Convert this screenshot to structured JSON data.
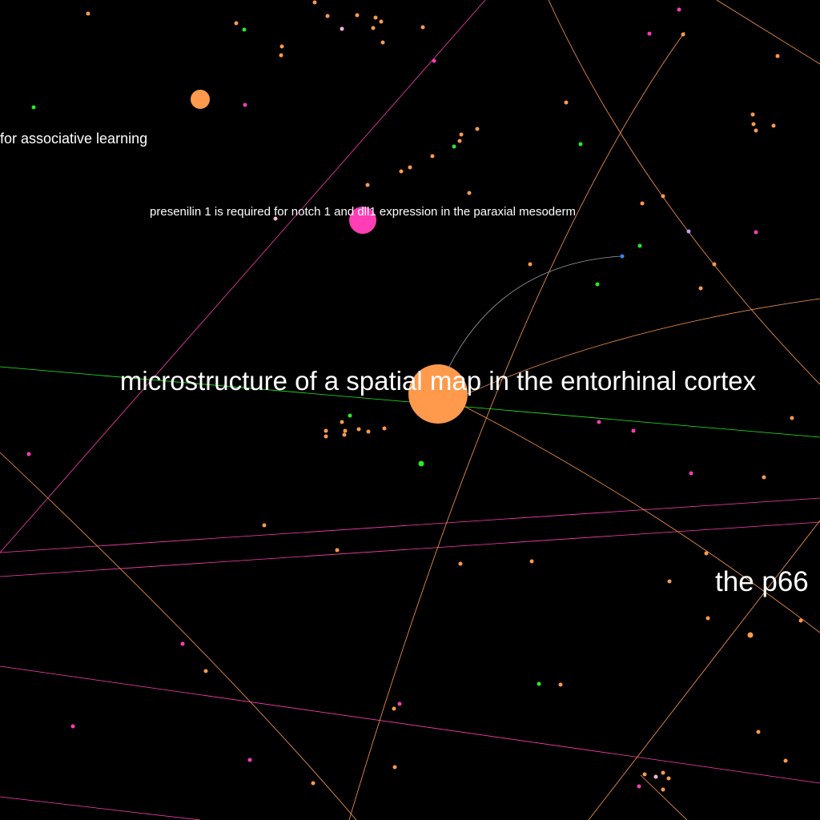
{
  "graph": {
    "background": "#000000",
    "colors": {
      "orange": "#ff9a4d",
      "pink": "#ff3db4",
      "green": "#22ee22",
      "blue": "#2a8cff",
      "lavender": "#b9a3ff",
      "light_pink": "#ffb3dd",
      "gray": "#9aa3a8"
    },
    "labels": {
      "main": "microstructure of a spatial map in the entorhinal cortex",
      "presenilin": "presenilin 1 is required for notch 1 and dll1 expression in the paraxial mesoderm",
      "associative": "for associative learning",
      "p66": "the p66"
    }
  }
}
